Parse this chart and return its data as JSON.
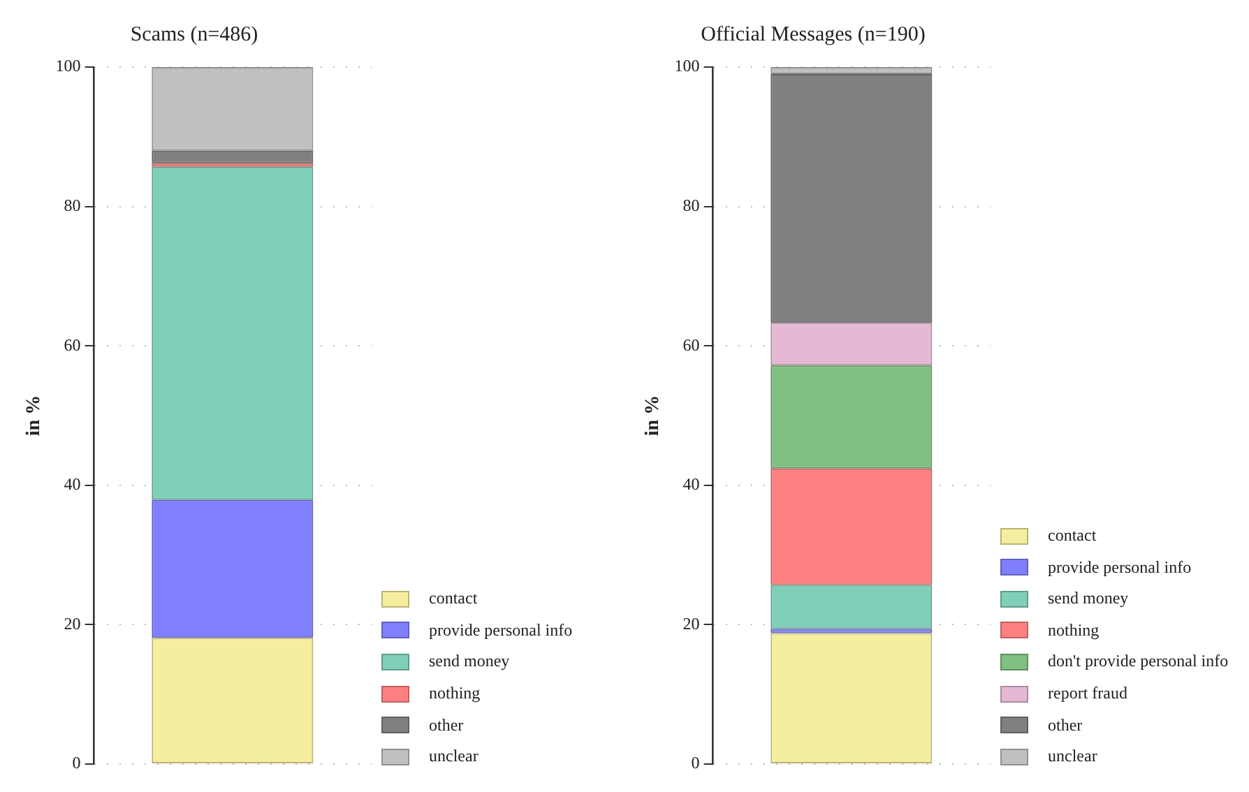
{
  "chart_data": [
    {
      "type": "bar",
      "title": "Scams (n=486)",
      "ylabel": "in %",
      "categories": [
        null
      ],
      "stacked": true,
      "ylim": [
        0,
        100
      ],
      "yticks": [
        0,
        20,
        40,
        60,
        80,
        100
      ],
      "grid": "y",
      "legend": "bottom right",
      "tick_labels": "y",
      "series": [
        {
          "name": "contact",
          "color": "#f6ee9f",
          "values": [
            18.1
          ]
        },
        {
          "name": "provide personal info",
          "color": "#8080ff",
          "values": [
            19.8
          ]
        },
        {
          "name": "send money",
          "color": "#80cfb8",
          "values": [
            47.8
          ]
        },
        {
          "name": "nothing",
          "color": "#ff8080",
          "values": [
            0.5
          ]
        },
        {
          "name": "other",
          "color": "#808080",
          "values": [
            1.8
          ]
        },
        {
          "name": "unclear",
          "color": "#c0c0c0",
          "values": [
            12.0
          ]
        }
      ]
    },
    {
      "type": "bar",
      "title": "Official Messages (n=190)",
      "ylabel": "in %",
      "categories": [
        null
      ],
      "stacked": true,
      "ylim": [
        0,
        100
      ],
      "yticks": [
        0,
        20,
        40,
        60,
        80,
        100
      ],
      "grid": "y",
      "legend": "bottom right",
      "tick_labels": "y",
      "series": [
        {
          "name": "contact",
          "color": "#f6ee9f",
          "values": [
            18.8
          ]
        },
        {
          "name": "provide personal info",
          "color": "#8080ff",
          "values": [
            0.6
          ]
        },
        {
          "name": "send money",
          "color": "#80cfb8",
          "values": [
            6.3
          ]
        },
        {
          "name": "nothing",
          "color": "#ff8080",
          "values": [
            16.7
          ]
        },
        {
          "name": "don't provide personal info",
          "color": "#80c080",
          "values": [
            14.8
          ]
        },
        {
          "name": "report fraud",
          "color": "#e5b9d3",
          "values": [
            6.1
          ]
        },
        {
          "name": "other",
          "color": "#808080",
          "values": [
            35.7
          ]
        },
        {
          "name": "unclear",
          "color": "#c0c0c0",
          "values": [
            1.0
          ]
        }
      ]
    }
  ]
}
